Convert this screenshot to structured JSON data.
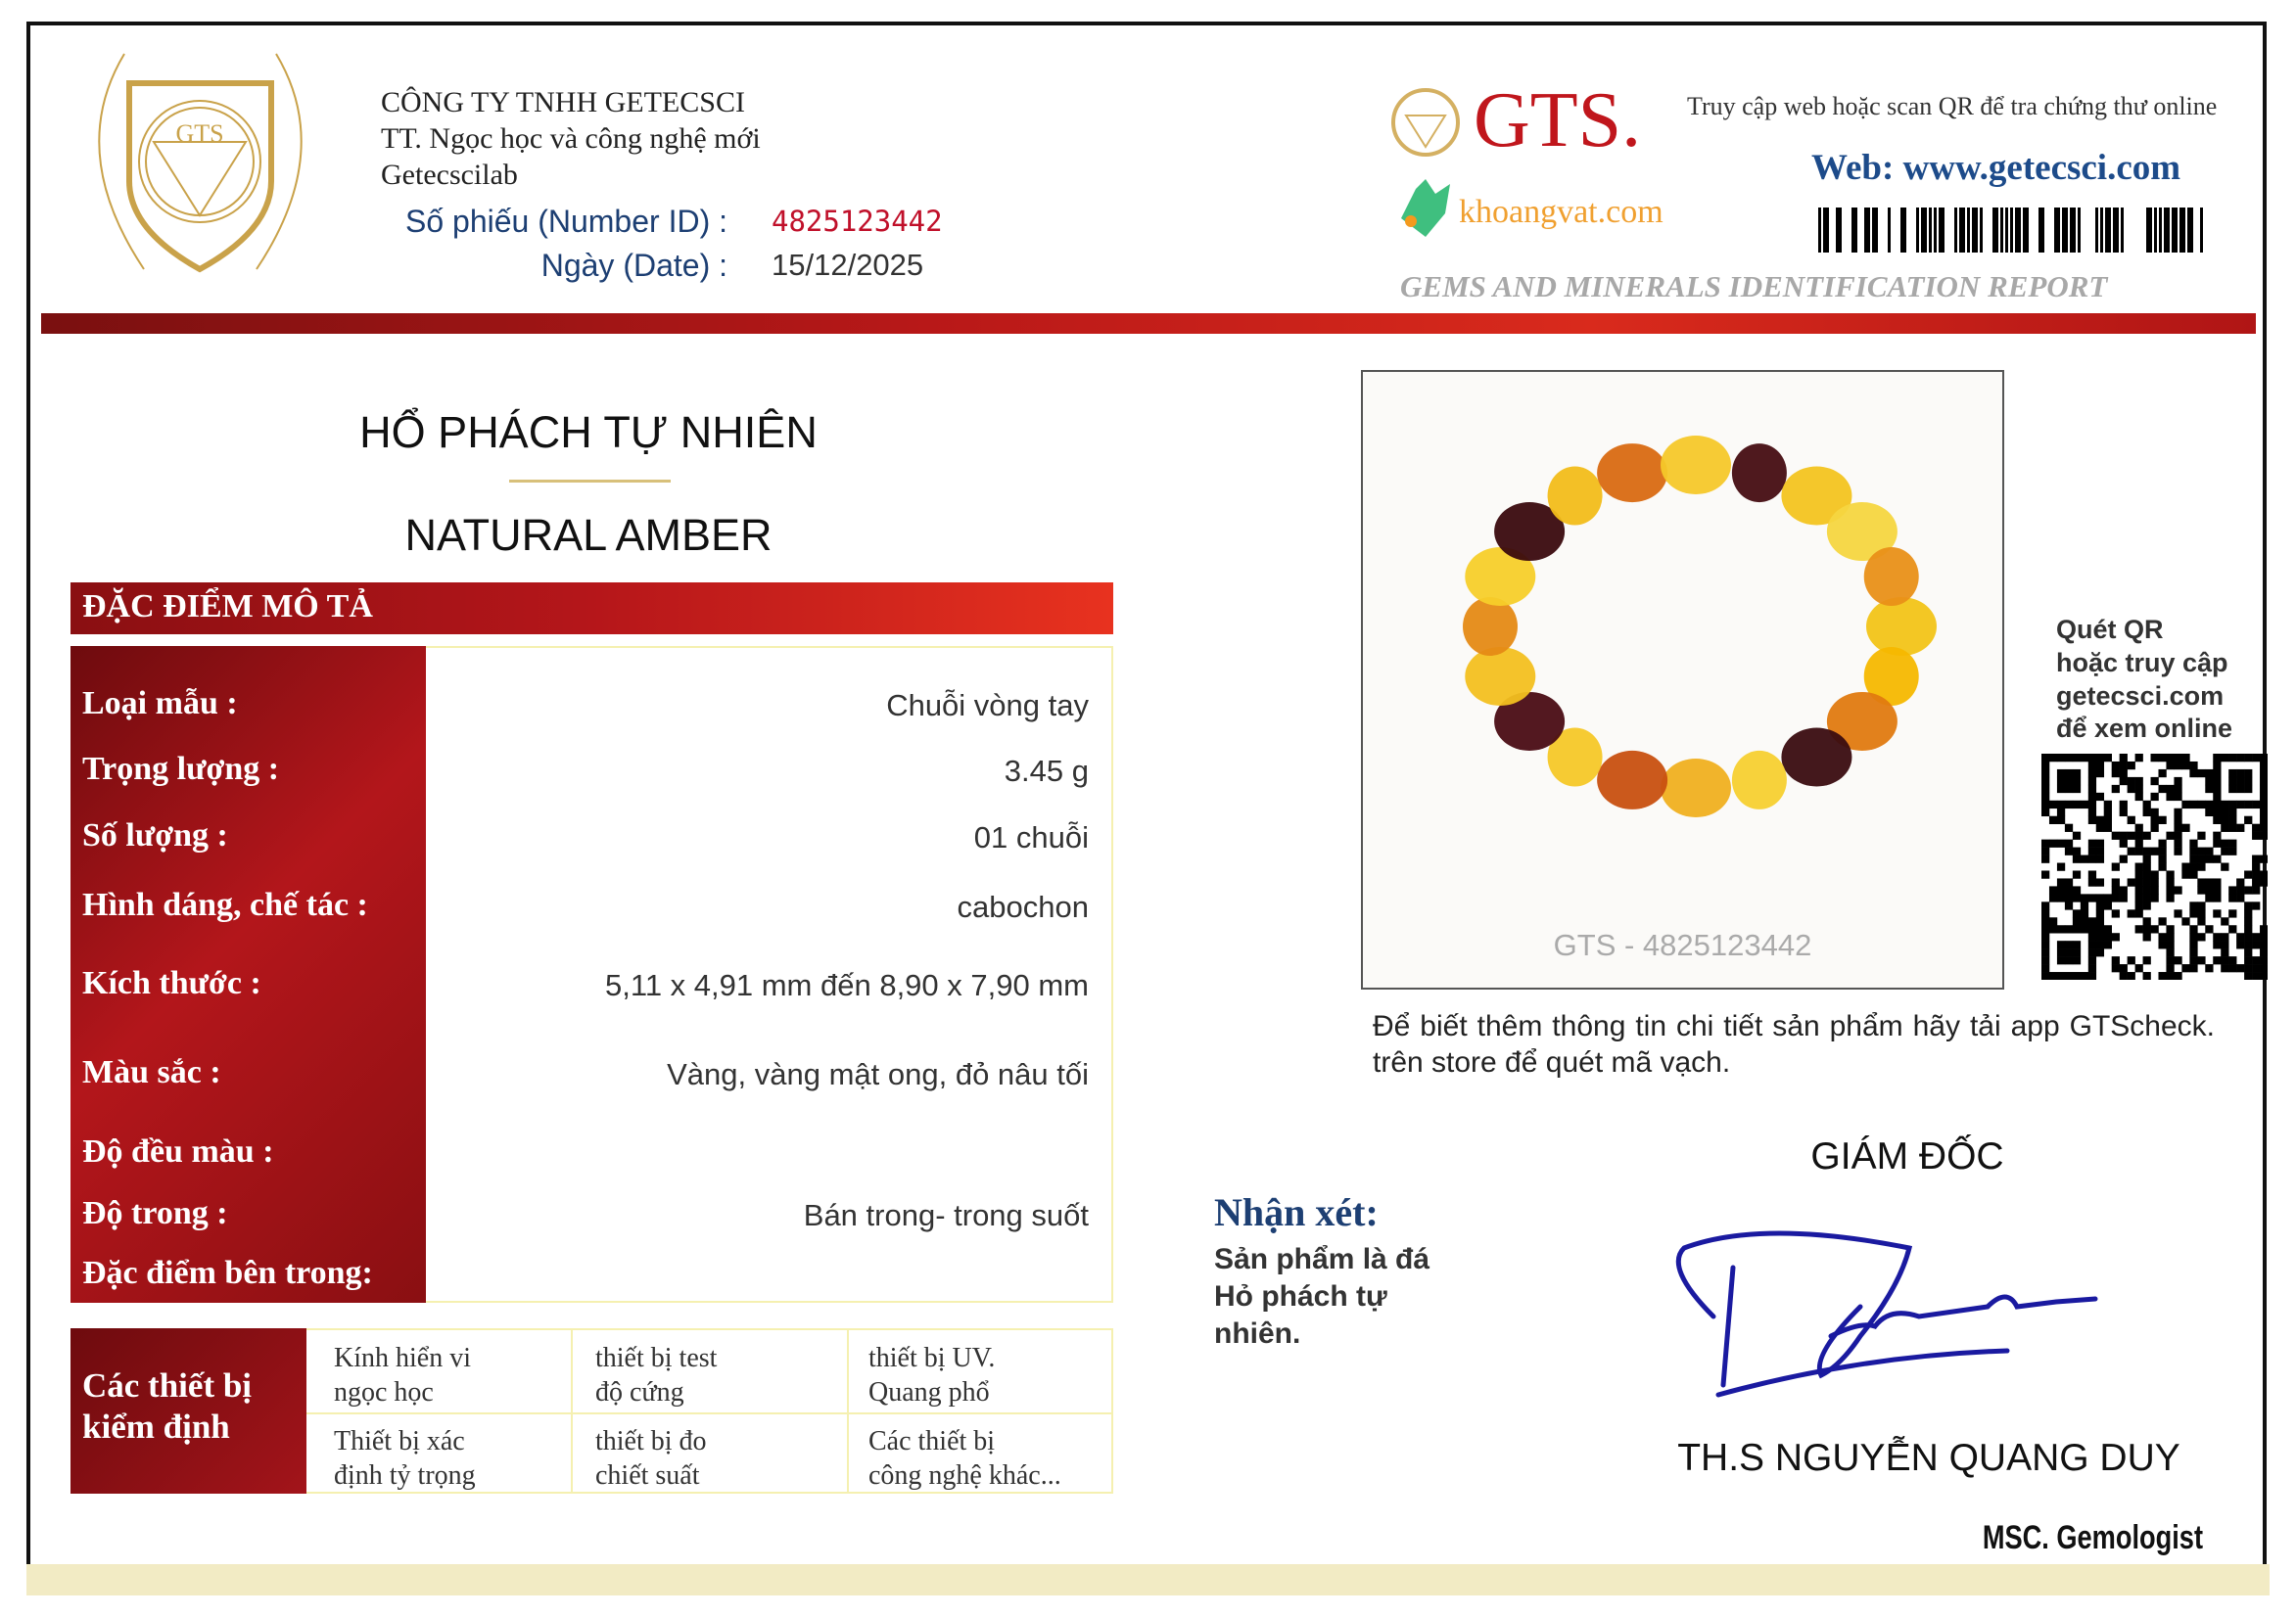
{
  "header": {
    "logo_text": "GTS",
    "company_lines": [
      "CÔNG TY  TNHH GETECSCI",
      "TT. Ngọc học và công nghệ mới",
      "Getecscilab"
    ],
    "number_id_label": "Số phiếu (Number ID) :",
    "number_id_value": "4825123442",
    "date_label": "Ngày (Date) :",
    "date_value": "15/12/2025",
    "brand": "GTS.",
    "partner_logo": "khoangvat.com",
    "online_note": "Truy cập web hoặc scan QR để tra chứng thư online",
    "web": "Web: www.getecsci.com",
    "report_title": "GEMS AND MINERALS IDENTIFICATION REPORT"
  },
  "colors": {
    "accent_red": "#b5161a",
    "navy": "#1d3f73",
    "id_red": "#c0102a",
    "gold": "#c9a24a"
  },
  "product": {
    "title_vi": "HỔ PHÁCH TỰ NHIÊN",
    "title_en": "NATURAL AMBER"
  },
  "description": {
    "heading": "ĐẶC ĐIỂM MÔ TẢ",
    "rows": [
      {
        "label": "Loại mẫu :",
        "value": "Chuỗi vòng tay"
      },
      {
        "label": "Trọng lượng :",
        "value": "3.45 g"
      },
      {
        "label": "Số lượng :",
        "value": "01 chuỗi"
      },
      {
        "label": "Hình dáng, chế tác :",
        "value": "cabochon"
      },
      {
        "label": "Kích thước :",
        "value": "5,11 x 4,91 mm đến 8,90 x 7,90 mm"
      },
      {
        "label": "Màu sắc :",
        "value": "Vàng, vàng mật ong, đỏ nâu tối"
      },
      {
        "label": "Độ đều màu :",
        "value": ""
      },
      {
        "label": "Độ trong :",
        "value": "Bán trong- trong suốt"
      },
      {
        "label": "Đặc điểm bên trong:",
        "value": ""
      }
    ]
  },
  "equipment": {
    "label": "Các thiết bị\nkiểm định",
    "items": [
      "Kính hiển vi\nngọc học",
      "thiết bị test\nđộ cứng",
      "thiết bị  UV.\nQuang phổ",
      "Thiết bị xác\nđịnh tỷ trọng",
      "thiết bị  đo\nchiết suất",
      "Các thiết bị\ncông nghệ khác..."
    ]
  },
  "photo": {
    "caption": "GTS - 4825123442"
  },
  "qr": {
    "lines": [
      "Quét QR",
      "hoặc truy cập",
      "getecsci.com",
      "để xem online"
    ]
  },
  "app_note": "Để biết thêm thông tin chi tiết sản phẩm hãy tải app GTScheck. trên store để quét mã vạch.",
  "remark": {
    "heading": "Nhận xét:",
    "text": "Sản phẩm là đá\nHỏ phách tự\nnhiên."
  },
  "signature": {
    "title": "GIÁM ĐỐC",
    "name": "TH.S NGUYỄN QUANG DUY",
    "role": "MSC. Gemologist"
  }
}
